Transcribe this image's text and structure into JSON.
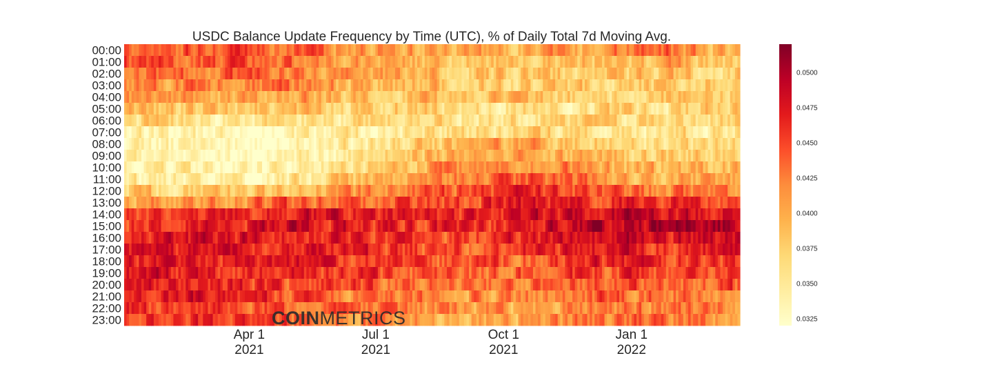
{
  "chart_data": {
    "type": "heatmap",
    "title": "USDC Balance Update Frequency by Time (UTC), % of Daily Total 7d Moving Avg.",
    "xlabel": "",
    "ylabel": "",
    "rows": [
      "00:00",
      "01:00",
      "02:00",
      "03:00",
      "04:00",
      "05:00",
      "06:00",
      "07:00",
      "08:00",
      "09:00",
      "10:00",
      "11:00",
      "12:00",
      "13:00",
      "14:00",
      "15:00",
      "16:00",
      "17:00",
      "18:00",
      "19:00",
      "20:00",
      "21:00",
      "22:00",
      "23:00"
    ],
    "x_range": [
      "2021-01-01",
      "2022-03-20"
    ],
    "x_ticks": [
      {
        "date": "2021-04-01",
        "line1": "Apr 1",
        "line2": "2021"
      },
      {
        "date": "2021-07-01",
        "line1": "Jul 1",
        "line2": "2021"
      },
      {
        "date": "2021-10-01",
        "line1": "Oct 1",
        "line2": "2021"
      },
      {
        "date": "2022-01-01",
        "line1": "Jan 1",
        "line2": "2022"
      }
    ],
    "period_boundaries": [
      "2021-01-01",
      "2021-02-15",
      "2021-04-01",
      "2021-05-15",
      "2021-07-01",
      "2021-08-15",
      "2021-10-01",
      "2021-11-15",
      "2022-01-01",
      "2022-02-10",
      "2022-03-20"
    ],
    "row_means_by_period": [
      [
        0.044,
        0.0445,
        0.043,
        0.042,
        0.0405,
        0.04,
        0.0395,
        0.041,
        0.044,
        0.04
      ],
      [
        0.0445,
        0.044,
        0.043,
        0.041,
        0.0395,
        0.0385,
        0.0385,
        0.039,
        0.0395,
        0.0385
      ],
      [
        0.0425,
        0.043,
        0.043,
        0.0405,
        0.0395,
        0.0385,
        0.038,
        0.038,
        0.038,
        0.0375
      ],
      [
        0.042,
        0.0425,
        0.0425,
        0.04,
        0.039,
        0.038,
        0.0375,
        0.0375,
        0.038,
        0.0385
      ],
      [
        0.0405,
        0.04,
        0.0405,
        0.039,
        0.0385,
        0.038,
        0.0375,
        0.037,
        0.0375,
        0.038
      ],
      [
        0.0385,
        0.038,
        0.038,
        0.0375,
        0.0375,
        0.037,
        0.0365,
        0.036,
        0.0365,
        0.0375
      ],
      [
        0.036,
        0.0355,
        0.0355,
        0.036,
        0.0365,
        0.0365,
        0.0365,
        0.0365,
        0.036,
        0.0365
      ],
      [
        0.0335,
        0.033,
        0.033,
        0.0345,
        0.036,
        0.037,
        0.037,
        0.036,
        0.0355,
        0.036
      ],
      [
        0.033,
        0.0328,
        0.0328,
        0.0345,
        0.037,
        0.039,
        0.0395,
        0.0375,
        0.036,
        0.036
      ],
      [
        0.033,
        0.0328,
        0.0328,
        0.035,
        0.0385,
        0.0405,
        0.041,
        0.039,
        0.038,
        0.0375
      ],
      [
        0.0335,
        0.033,
        0.033,
        0.0355,
        0.0395,
        0.0415,
        0.0425,
        0.04,
        0.0385,
        0.0385
      ],
      [
        0.0345,
        0.034,
        0.034,
        0.0365,
        0.0405,
        0.0425,
        0.044,
        0.0415,
        0.04,
        0.0395
      ],
      [
        0.0375,
        0.0375,
        0.0385,
        0.04,
        0.043,
        0.0445,
        0.0465,
        0.044,
        0.042,
        0.0415
      ],
      [
        0.041,
        0.0415,
        0.043,
        0.044,
        0.045,
        0.045,
        0.047,
        0.047,
        0.046,
        0.046
      ],
      [
        0.0445,
        0.046,
        0.047,
        0.047,
        0.046,
        0.0455,
        0.047,
        0.0485,
        0.048,
        0.048
      ],
      [
        0.0455,
        0.047,
        0.0475,
        0.0475,
        0.046,
        0.0455,
        0.0475,
        0.0495,
        0.0495,
        0.05
      ],
      [
        0.046,
        0.047,
        0.0475,
        0.047,
        0.0455,
        0.045,
        0.0465,
        0.048,
        0.048,
        0.048
      ],
      [
        0.047,
        0.047,
        0.047,
        0.0465,
        0.045,
        0.0445,
        0.046,
        0.047,
        0.0465,
        0.0465
      ],
      [
        0.0475,
        0.047,
        0.047,
        0.046,
        0.0445,
        0.044,
        0.045,
        0.046,
        0.0455,
        0.0455
      ],
      [
        0.047,
        0.0465,
        0.0465,
        0.0455,
        0.044,
        0.0435,
        0.044,
        0.045,
        0.045,
        0.0445
      ],
      [
        0.048,
        0.047,
        0.0455,
        0.0445,
        0.043,
        0.0425,
        0.043,
        0.0445,
        0.044,
        0.044
      ],
      [
        0.047,
        0.046,
        0.0445,
        0.0435,
        0.042,
        0.0415,
        0.042,
        0.0435,
        0.043,
        0.043
      ],
      [
        0.046,
        0.045,
        0.044,
        0.043,
        0.0415,
        0.0405,
        0.041,
        0.042,
        0.0425,
        0.042
      ],
      [
        0.0465,
        0.0455,
        0.0445,
        0.043,
        0.0415,
        0.0405,
        0.041,
        0.042,
        0.043,
        0.042
      ]
    ],
    "colorbar": {
      "min": 0.032,
      "max": 0.052,
      "ticks": [
        "0.0325",
        "0.0350",
        "0.0375",
        "0.0400",
        "0.0425",
        "0.0450",
        "0.0475",
        "0.0500"
      ],
      "colormap": "YlOrRd",
      "stops": [
        "#ffffcc",
        "#ffeda0",
        "#fed976",
        "#feb24c",
        "#fd8d3c",
        "#fc4e2a",
        "#e31a1c",
        "#bd0026",
        "#800026"
      ]
    },
    "grid": false,
    "legend": "colorbar right"
  },
  "watermark": {
    "bold": "COIN",
    "light": "METRICS",
    "color": "#2b2b2b"
  }
}
